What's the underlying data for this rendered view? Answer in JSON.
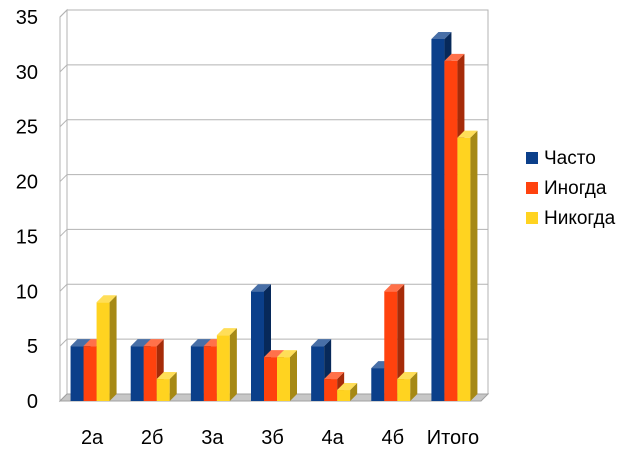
{
  "chart_data": {
    "type": "bar",
    "categories": [
      "2а",
      "2б",
      "3а",
      "3б",
      "4а",
      "4б",
      "Итого"
    ],
    "series": [
      {
        "name": "Часто",
        "color": "#0b3f8a",
        "values": [
          5,
          5,
          5,
          10,
          5,
          3,
          33
        ]
      },
      {
        "name": "Иногда",
        "color": "#ff420e",
        "values": [
          5,
          5,
          5,
          4,
          2,
          10,
          31
        ]
      },
      {
        "name": "Никогда",
        "color": "#ffd320",
        "values": [
          9,
          2,
          6,
          4,
          1,
          2,
          24
        ]
      }
    ],
    "y_ticks": [
      "0",
      "5",
      "10",
      "15",
      "20",
      "25",
      "30",
      "35"
    ],
    "ylim": [
      0,
      35
    ],
    "grid": true,
    "legend_position": "right",
    "style": "3d-bars"
  }
}
